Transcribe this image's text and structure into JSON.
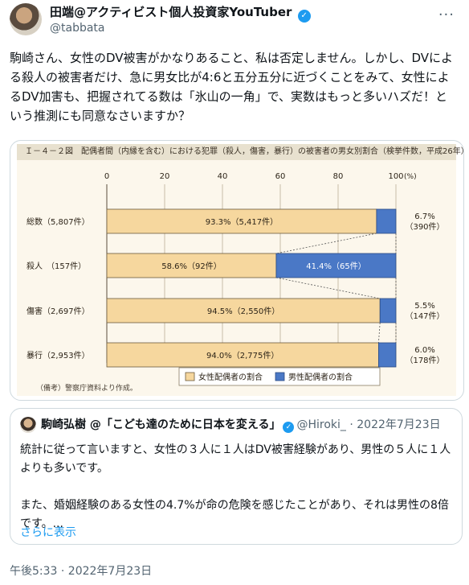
{
  "tweet": {
    "author_name": "田端@アクティビスト個人投資家YouTuber",
    "handle": "@tabbata",
    "text": "駒崎さん、女性のDV被害がかなりあること、私は否定しません。しかし、DVによる殺人の被害者だけ、急に男女比が4:6と五分五分に近づくことをみて、女性によるDV加害も、把握されてる数は「氷山の一角」で、実数はもっと多いハズだ！という推測にも同意なさいますか？",
    "timestamp": "午後5:33 · 2022年7月23日",
    "icons": {
      "verified": "verified-badge-icon",
      "more": "more-options-icon"
    }
  },
  "quoted": {
    "author_name": "駒崎弘樹 @「こども達のために日本を変える」",
    "handle": "@Hiroki_",
    "date": "2022年7月23日",
    "text": "統計に従って言いますと、女性の３人に１人はDV被害経験があり、男性の５人に１人よりも多いです。\n\nまた、婚姻経験のある女性の4.7%が命の危険を感じたことがあり、それは男性の8倍です。...",
    "show_more": "さらに表示"
  },
  "chart_data": {
    "type": "bar",
    "title": "Ｉ－４－２図　配偶者間（内縁を含む）における犯罪（殺人，傷害，暴行）の被害者の男女別割合（検挙件数，平成26年）",
    "categories": [
      "総数（5,807件）",
      "殺人　（157件）",
      "傷害（2,697件）",
      "暴行（2,953件）"
    ],
    "series": [
      {
        "name": "女性配偶者の割合",
        "values": [
          93.3,
          58.6,
          94.5,
          94.0
        ],
        "labels": [
          "93.3%（5,417件）",
          "58.6%（92件）",
          "94.5%（2,550件）",
          "94.0%（2,775件）"
        ],
        "color": "#f6d79e"
      },
      {
        "name": "男性配偶者の割合",
        "values": [
          6.7,
          41.4,
          5.5,
          6.0
        ],
        "labels": [
          "6.7%",
          "41.4%（65件）",
          "5.5%",
          "6.0%"
        ],
        "counts": [
          "（390件）",
          "",
          "（147件）",
          "（178件）"
        ],
        "color": "#4a78c6"
      }
    ],
    "ticks": [
      "0",
      "20",
      "40",
      "60",
      "80",
      "100"
    ],
    "unit": "(%)",
    "xlim": [
      0,
      100
    ],
    "stacked": true,
    "legend": "bottom",
    "note": "（備考）警察庁資料より作成。"
  }
}
